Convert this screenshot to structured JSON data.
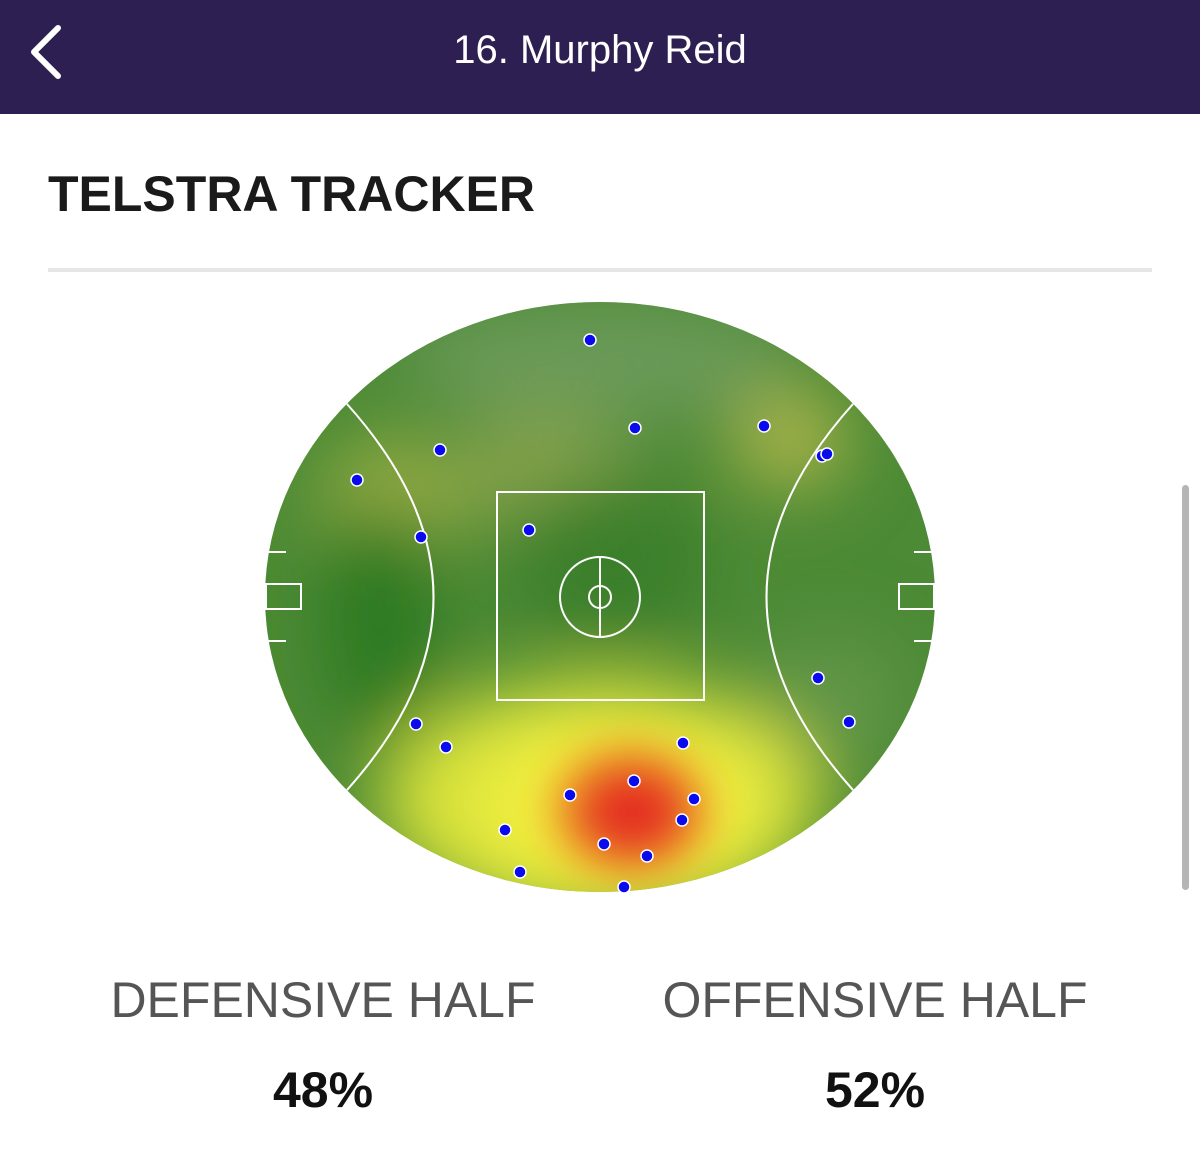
{
  "header": {
    "title": "16. Murphy Reid"
  },
  "section": {
    "title": "TELSTRA TRACKER"
  },
  "stats": [
    {
      "label": "DEFENSIVE HALF",
      "value": "48%"
    },
    {
      "label": "OFFENSIVE HALF",
      "value": "52%"
    }
  ]
}
